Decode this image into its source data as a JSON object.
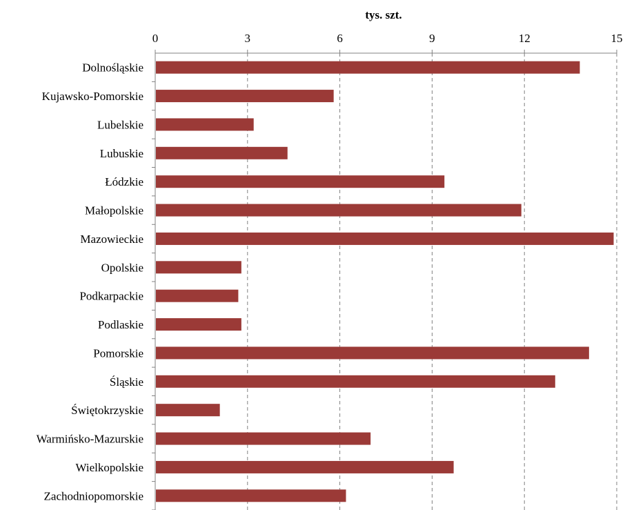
{
  "chart_data": {
    "type": "bar",
    "orientation": "horizontal",
    "axis_title": "tys. szt.",
    "axis_position": "top",
    "xlim": [
      0,
      15
    ],
    "xticks": [
      0,
      3,
      6,
      9,
      12,
      15
    ],
    "grid": true,
    "grid_style": "dashed",
    "legend": "none",
    "bar_color": "#9b3a37",
    "categories": [
      "Dolnośląskie",
      "Kujawsko-Pomorskie",
      "Lubelskie",
      "Lubuskie",
      "Łódzkie",
      "Małopolskie",
      "Mazowieckie",
      "Opolskie",
      "Podkarpackie",
      "Podlaskie",
      "Pomorskie",
      "Śląskie",
      "Świętokrzyskie",
      "Warmińsko-Mazurskie",
      "Wielkopolskie",
      "Zachodniopomorskie"
    ],
    "values": [
      13.8,
      5.8,
      3.2,
      4.3,
      9.4,
      11.9,
      14.9,
      2.8,
      2.7,
      2.8,
      14.1,
      13.0,
      2.1,
      7.0,
      9.7,
      6.2
    ]
  }
}
